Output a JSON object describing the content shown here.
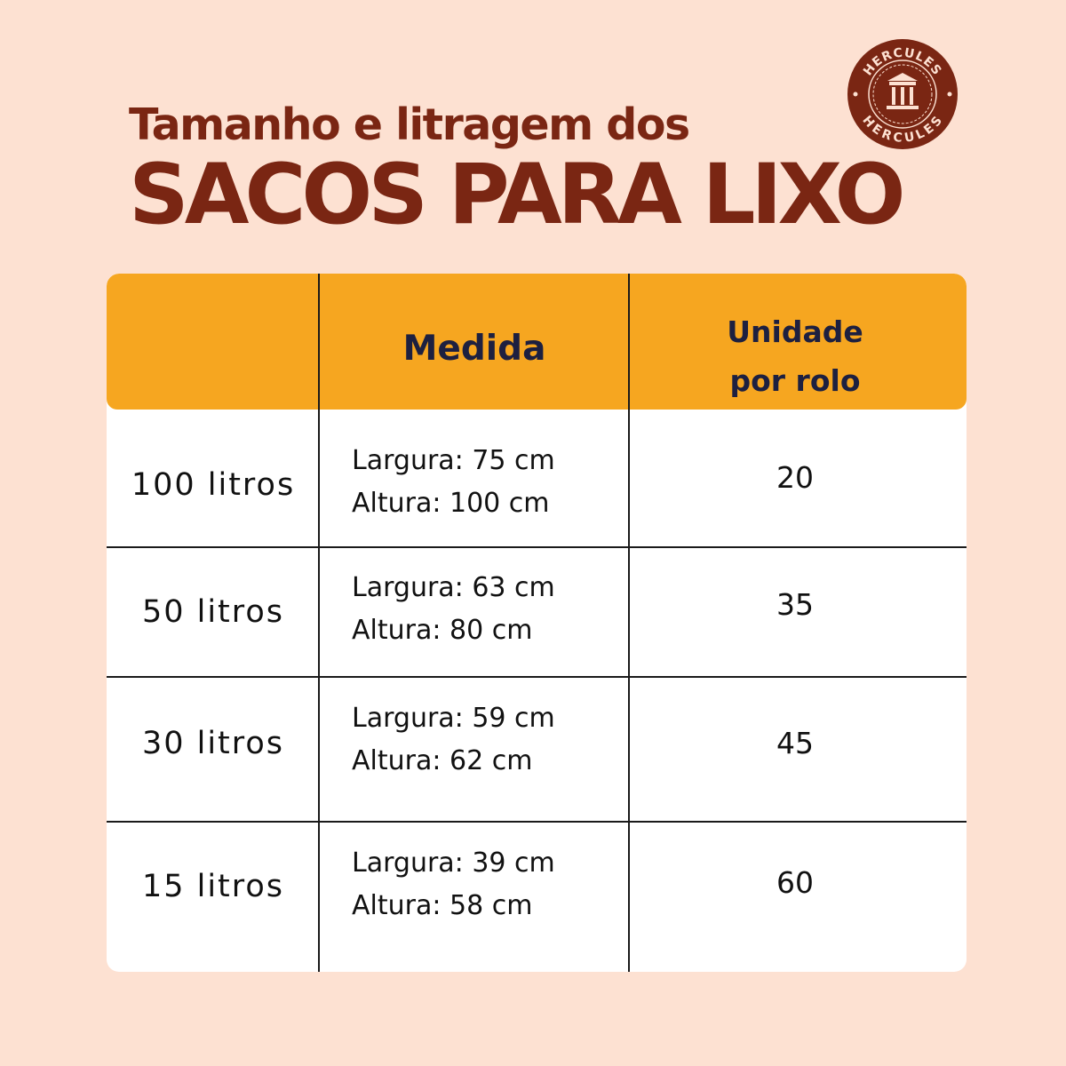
{
  "heading": {
    "line1": "Tamanho e litragem dos",
    "line2": "SACOS PARA LIXO"
  },
  "logo": {
    "brand_text_top": "HERCULES",
    "brand_text_bottom": "HERCULES",
    "icon": "temple-icon"
  },
  "table": {
    "headers": [
      "",
      "Medida",
      "Unidade",
      "por rolo"
    ],
    "rows": [
      {
        "size": "100 litros",
        "largura": "Largura: 75 cm",
        "altura": "Altura: 100 cm",
        "units": "20"
      },
      {
        "size": "50 litros",
        "largura": "Largura: 63 cm",
        "altura": "Altura: 80 cm",
        "units": "35"
      },
      {
        "size": "30 litros",
        "largura": "Largura: 59 cm",
        "altura": "Altura: 62 cm",
        "units": "45"
      },
      {
        "size": "15 litros",
        "largura": "Largura: 39 cm",
        "altura": "Altura: 58 cm",
        "units": "60"
      }
    ]
  },
  "colors": {
    "background": "#fde1d2",
    "title": "#7a2613",
    "header": "#f6a620",
    "header_text": "#1d2040",
    "logo": "#7a2613"
  }
}
